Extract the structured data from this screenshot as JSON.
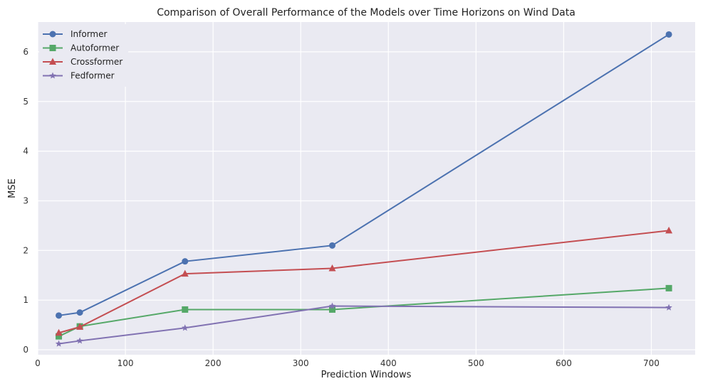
{
  "chart_data": {
    "type": "line",
    "title": "Comparison of Overall Performance of the Models over Time Horizons on Wind Data",
    "xlabel": "Prediction Windows",
    "ylabel": "MSE",
    "xlim": [
      0,
      750
    ],
    "ylim": [
      -0.1,
      6.6
    ],
    "xticks": [
      0,
      100,
      200,
      300,
      400,
      500,
      600,
      700
    ],
    "yticks": [
      0,
      1,
      2,
      3,
      4,
      5,
      6
    ],
    "grid": true,
    "legend_position": "top-left",
    "x": [
      24,
      48,
      168,
      336,
      720
    ],
    "series": [
      {
        "name": "Informer",
        "color": "#4c72b0",
        "marker": "circle",
        "values": [
          0.69,
          0.75,
          1.78,
          2.1,
          6.35
        ]
      },
      {
        "name": "Autoformer",
        "color": "#55a868",
        "marker": "square",
        "values": [
          0.27,
          0.47,
          0.81,
          0.81,
          1.24
        ]
      },
      {
        "name": "Crossformer",
        "color": "#c44e52",
        "marker": "triangle",
        "values": [
          0.34,
          0.46,
          1.53,
          1.64,
          2.4
        ]
      },
      {
        "name": "Fedformer",
        "color": "#8172b2",
        "marker": "star",
        "values": [
          0.12,
          0.18,
          0.44,
          0.88,
          0.85
        ]
      }
    ]
  }
}
